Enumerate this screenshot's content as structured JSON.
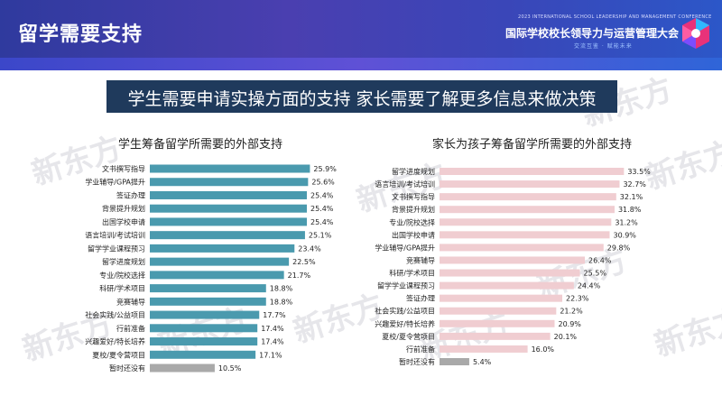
{
  "header": {
    "title": "留学需要支持",
    "conference_en": "2023 INTERNATIONAL SCHOOL LEADERSHIP AND MANAGEMENT CONFERENCE",
    "conference_cn": "国际学校校长领导力与运营管理大会",
    "conference_slogan": "交流互鉴 · 赋能未来"
  },
  "banner": {
    "text": "学生需要申请实操方面的支持 家长需要了解更多信息来做决策",
    "color": "#1f3a5c"
  },
  "watermark": "新东方",
  "chart_data": [
    {
      "type": "bar",
      "orientation": "horizontal",
      "title": "学生筹备留学所需要的外部支持",
      "unit": "%",
      "bar_color": "#4a9aae",
      "highlight_color": "#a9a9a9",
      "categories": [
        "文书撰写指导",
        "学业辅导/GPA提升",
        "签证办理",
        "背景提升规划",
        "出国学校申请",
        "语言培训/考试培训",
        "留学学业课程预习",
        "留学进度规划",
        "专业/院校选择",
        "科研/学术项目",
        "竞赛辅导",
        "社会实践/公益项目",
        "行前准备",
        "兴趣爱好/特长培养",
        "夏校/夏令营项目",
        "暂时还没有"
      ],
      "values": [
        25.9,
        25.6,
        25.4,
        25.4,
        25.4,
        25.1,
        23.4,
        22.5,
        21.7,
        18.8,
        18.8,
        17.7,
        17.4,
        17.4,
        17.1,
        10.5
      ],
      "labels": [
        "25.9%",
        "25.6%",
        "25.4%",
        "25.4%",
        "25.4%",
        "25.1%",
        "23.4%",
        "22.5%",
        "21.7%",
        "18.8%",
        "18.8%",
        "17.7%",
        "17.4%",
        "17.4%",
        "17.1%",
        "10.5%"
      ]
    },
    {
      "type": "bar",
      "orientation": "horizontal",
      "title": "家长为孩子筹备留学所需要的外部支持",
      "unit": "%",
      "bar_color": "#f0cdd1",
      "highlight_color": "#a9a9a9",
      "categories": [
        "留学进度规划",
        "语言培训/考试培训",
        "文书撰写指导",
        "背景提升规划",
        "专业/院校选择",
        "出国学校申请",
        "学业辅导/GPA提升",
        "竞赛辅导",
        "科研/学术项目",
        "留学学业课程预习",
        "签证办理",
        "社会实践/公益项目",
        "兴趣爱好/特长培养",
        "夏校/夏令营项目",
        "行前准备",
        "暂时还没有"
      ],
      "values": [
        33.5,
        32.7,
        32.1,
        31.8,
        31.2,
        30.9,
        29.8,
        26.4,
        25.5,
        24.4,
        22.3,
        21.2,
        20.9,
        20.1,
        16.0,
        5.4
      ],
      "labels": [
        "33.5%",
        "32.7%",
        "32.1%",
        "31.8%",
        "31.2%",
        "30.9%",
        "29.8%",
        "26.4%",
        "25.5%",
        "24.4%",
        "22.3%",
        "21.2%",
        "20.9%",
        "20.1%",
        "16.0%",
        "5.4%"
      ]
    }
  ]
}
